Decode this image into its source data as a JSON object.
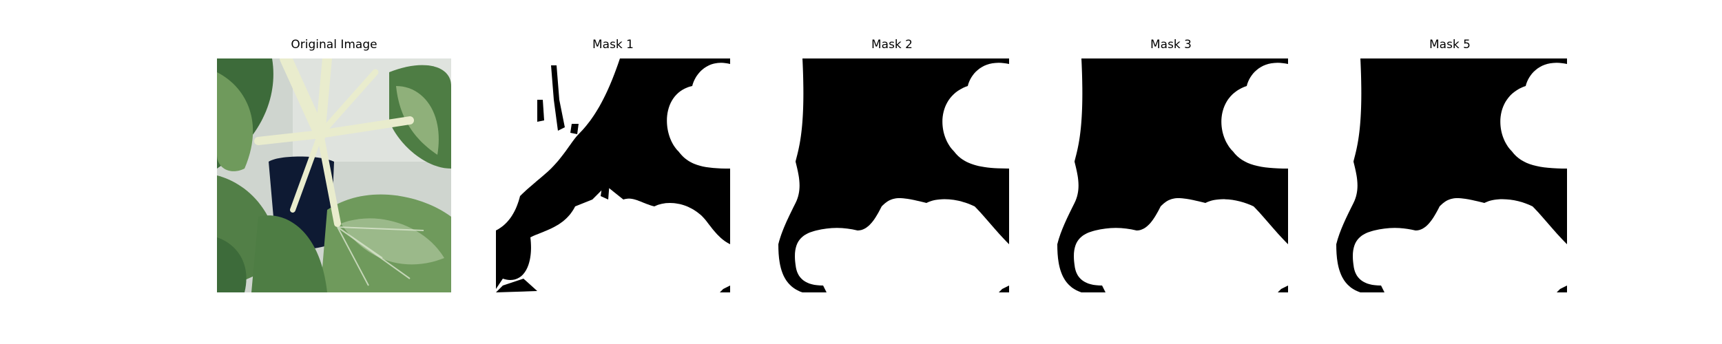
{
  "figure": {
    "panels": [
      {
        "title": "Original Image",
        "kind": "photo",
        "subject": "plant-leaves"
      },
      {
        "title": "Mask 1",
        "kind": "mask"
      },
      {
        "title": "Mask 2",
        "kind": "mask"
      },
      {
        "title": "Mask 3",
        "kind": "mask"
      },
      {
        "title": "Mask 5",
        "kind": "mask"
      }
    ]
  },
  "colors": {
    "mask_foreground": "#000000",
    "mask_background": "#ffffff",
    "leaf_dark": "#3d6b3a",
    "leaf_light": "#8fb07a",
    "stem": "#e9eccd",
    "wall": "#cfd5cf",
    "pot": "#0e1a33"
  }
}
